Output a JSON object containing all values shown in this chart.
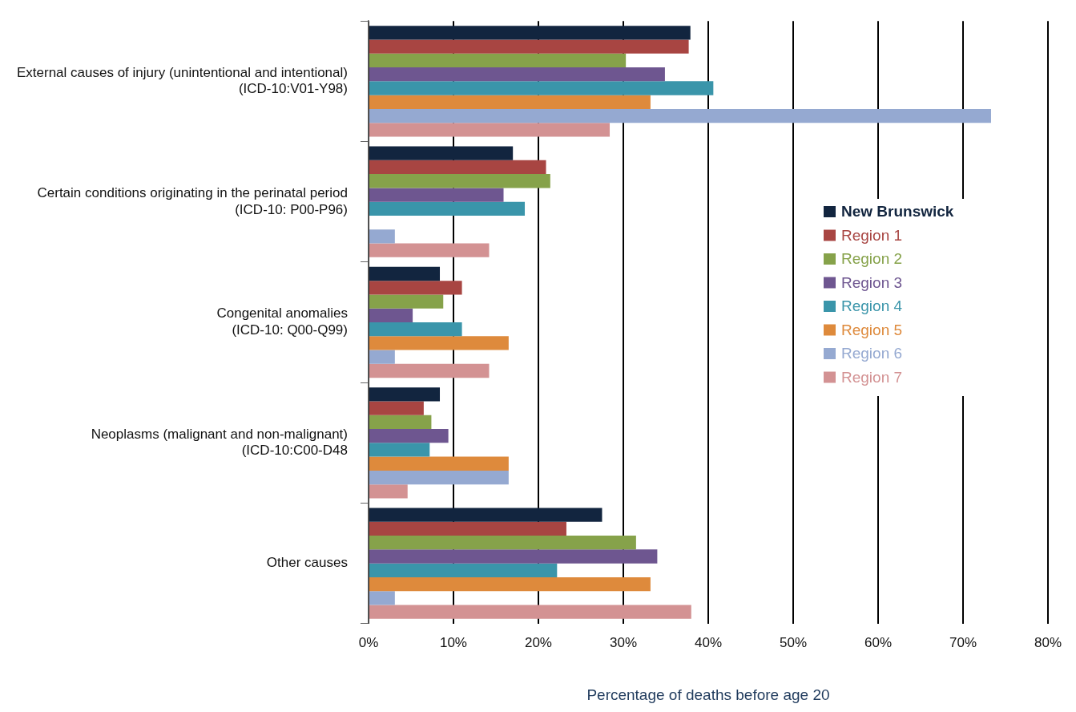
{
  "chart_data": {
    "type": "bar",
    "orientation": "horizontal",
    "xlabel": "Percentage of deaths before age 20",
    "categories": [
      "External causes of injury (unintentional and intentional)\n(ICD-10:V01-Y98)",
      "Certain conditions originating in the perinatal period\n(ICD-10: P00-P96)",
      "Congenital anomalies\n(ICD-10: Q00-Q99)",
      "Neoplasms (malignant and non-malignant)\n(ICD-10:C00-D48",
      "Other causes"
    ],
    "series": [
      {
        "name": "New Brunswick",
        "color": "#12253f",
        "values": [
          37.9,
          17.0,
          8.4,
          8.4,
          27.5
        ]
      },
      {
        "name": "Region 1",
        "color": "#a84542",
        "values": [
          37.7,
          20.9,
          11.0,
          6.5,
          23.3
        ]
      },
      {
        "name": "Region 2",
        "color": "#86a24a",
        "values": [
          30.3,
          21.4,
          8.8,
          7.4,
          31.5
        ]
      },
      {
        "name": "Region 3",
        "color": "#6e5690",
        "values": [
          34.9,
          15.9,
          5.2,
          9.4,
          34.0
        ]
      },
      {
        "name": "Region 4",
        "color": "#3a95aa",
        "values": [
          40.6,
          18.4,
          11.0,
          7.2,
          22.2
        ]
      },
      {
        "name": "Region 5",
        "color": "#de8a3c",
        "values": [
          33.2,
          null,
          16.5,
          16.5,
          33.2
        ]
      },
      {
        "name": "Region 6",
        "color": "#95a9d1",
        "values": [
          73.3,
          3.1,
          3.1,
          16.5,
          3.1
        ]
      },
      {
        "name": "Region 7",
        "color": "#d39293",
        "values": [
          28.4,
          14.2,
          14.2,
          4.6,
          38.0
        ]
      }
    ],
    "xlim": [
      0,
      80
    ],
    "xticks": [
      {
        "value": 0,
        "label": "0%"
      },
      {
        "value": 10,
        "label": "10%"
      },
      {
        "value": 20,
        "label": "20%"
      },
      {
        "value": 30,
        "label": "30%"
      },
      {
        "value": 40,
        "label": "40%"
      },
      {
        "value": 50,
        "label": "50%"
      },
      {
        "value": 60,
        "label": "60%"
      },
      {
        "value": 70,
        "label": "70%"
      },
      {
        "value": 80,
        "label": "80%"
      }
    ],
    "grid": "x",
    "legend": "right"
  }
}
